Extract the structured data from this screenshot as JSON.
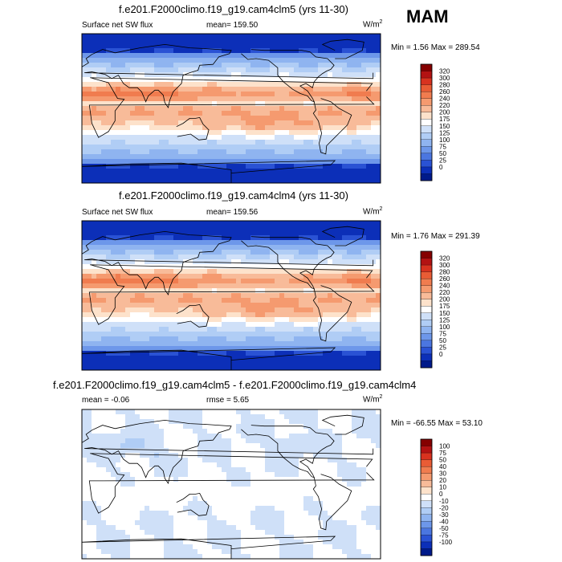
{
  "season": "MAM",
  "chart_data": [
    {
      "type": "heatmap",
      "title": "f.e201.F2000climo.f19_g19.cam4clm5 (yrs 11-30)",
      "left_label": "Surface net SW flux",
      "center_label": "mean=  159.50",
      "units": "W/m",
      "units_sup": "2",
      "minmax": "Min =   1.56 Max = 289.54",
      "field": "standard",
      "colorbar": {
        "labels": [
          "320",
          "300",
          "280",
          "260",
          "240",
          "220",
          "200",
          "175",
          "150",
          "125",
          "100",
          "75",
          "50",
          "25",
          "0"
        ],
        "colors": [
          "#850000",
          "#b31212",
          "#d8321f",
          "#e95c35",
          "#f07c4f",
          "#f59a6f",
          "#f8bb99",
          "#fde2cb",
          "#ffffff",
          "#cfe0f8",
          "#b0cdf5",
          "#8fb4f0",
          "#6d97ea",
          "#4b76e0",
          "#2a52d4",
          "#0c2fb8",
          "#001a8a"
        ]
      }
    },
    {
      "type": "heatmap",
      "title": "f.e201.F2000climo.f19_g19.cam4clm4 (yrs 11-30)",
      "left_label": "Surface net SW flux",
      "center_label": "mean=  159.56",
      "units": "W/m",
      "units_sup": "2",
      "minmax": "Min =   1.76 Max = 291.39",
      "field": "standard",
      "colorbar": {
        "labels": [
          "320",
          "300",
          "280",
          "260",
          "240",
          "220",
          "200",
          "175",
          "150",
          "125",
          "100",
          "75",
          "50",
          "25",
          "0"
        ],
        "colors": [
          "#850000",
          "#b31212",
          "#d8321f",
          "#e95c35",
          "#f07c4f",
          "#f59a6f",
          "#f8bb99",
          "#fde2cb",
          "#ffffff",
          "#cfe0f8",
          "#b0cdf5",
          "#8fb4f0",
          "#6d97ea",
          "#4b76e0",
          "#2a52d4",
          "#0c2fb8",
          "#001a8a"
        ]
      }
    },
    {
      "type": "heatmap",
      "title": "f.e201.F2000climo.f19_g19.cam4clm5 - f.e201.F2000climo.f19_g19.cam4clm4",
      "left_label": "mean =  -0.06",
      "center_label": "rmse =   5.65",
      "units": "W/m",
      "units_sup": "2",
      "minmax": "Min = -66.55 Max =  53.10",
      "field": "difference",
      "colorbar": {
        "labels": [
          "100",
          "75",
          "50",
          "40",
          "30",
          "20",
          "10",
          "0",
          "-10",
          "-20",
          "-30",
          "-40",
          "-50",
          "-75",
          "-100"
        ],
        "colors": [
          "#850000",
          "#b31212",
          "#d8321f",
          "#e95c35",
          "#f07c4f",
          "#f59a6f",
          "#f8bb99",
          "#fde2cb",
          "#ffffff",
          "#cfe0f8",
          "#b0cdf5",
          "#8fb4f0",
          "#6d97ea",
          "#4b76e0",
          "#2a52d4",
          "#0c2fb8",
          "#001a8a"
        ]
      }
    }
  ]
}
